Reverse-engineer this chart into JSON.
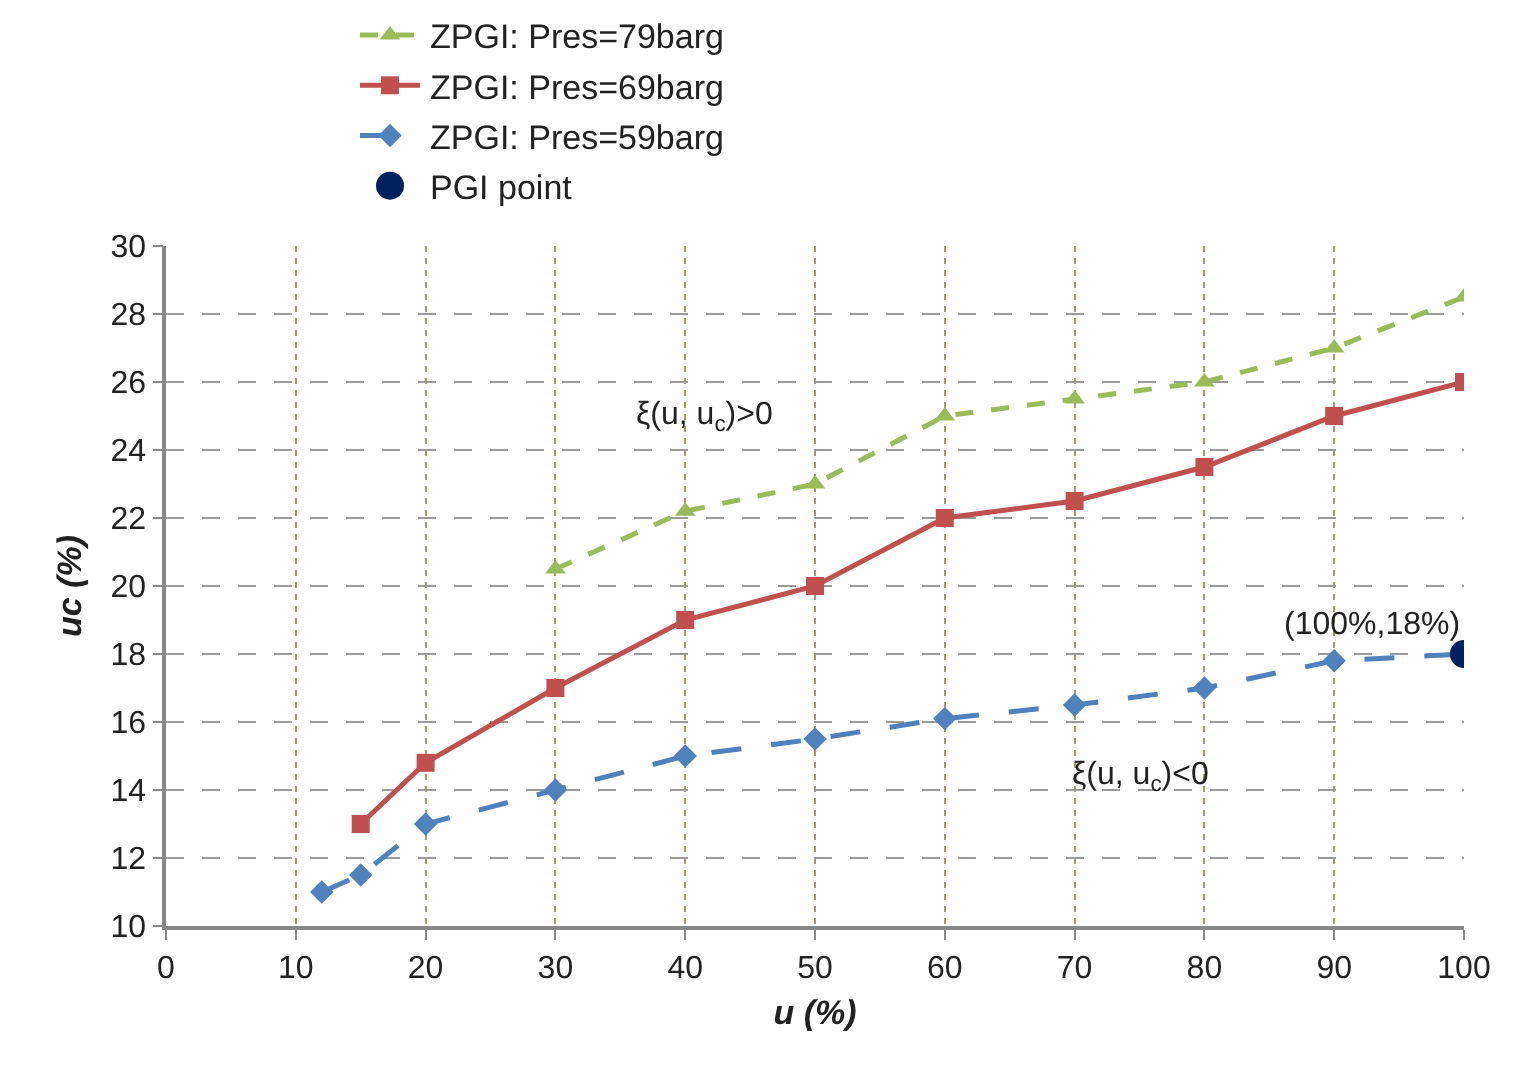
{
  "chart_data": {
    "type": "line",
    "xlabel": "u (%)",
    "ylabel": "uc (%)",
    "xlim": [
      0,
      100
    ],
    "xticks": [
      0,
      10,
      20,
      30,
      40,
      50,
      60,
      70,
      80,
      90,
      100
    ],
    "ylim": [
      10,
      30
    ],
    "yticks": [
      10,
      12,
      14,
      16,
      18,
      20,
      22,
      24,
      26,
      28,
      30
    ],
    "grid": true,
    "legend": "top",
    "series": [
      {
        "name": "ZPGI: Pres=79barg",
        "color": "#9bbb59",
        "marker": "triangle",
        "line_style": "dashed",
        "x": [
          30,
          40,
          50,
          60,
          70,
          80,
          90,
          100
        ],
        "values": [
          20.5,
          22.2,
          23,
          25,
          25.5,
          26,
          27,
          28.5
        ]
      },
      {
        "name": "ZPGI: Pres=69barg",
        "color": "#c0504d",
        "marker": "square",
        "line_style": "solid",
        "x": [
          15,
          20,
          30,
          40,
          50,
          60,
          70,
          80,
          90,
          100
        ],
        "values": [
          13,
          14.8,
          17,
          19,
          20,
          22,
          22.5,
          23.5,
          25,
          26
        ]
      },
      {
        "name": "ZPGI: Pres=59barg",
        "color": "#4f81bd",
        "marker": "diamond",
        "line_style": "dashed",
        "x": [
          12,
          15,
          20,
          30,
          40,
          50,
          60,
          70,
          80,
          90,
          100
        ],
        "values": [
          11,
          11.5,
          13,
          14,
          15,
          15.5,
          16.1,
          16.5,
          17,
          17.8,
          18
        ]
      },
      {
        "name": "PGI point",
        "type": "scatter",
        "color": "#002060",
        "marker": "circle",
        "x": [
          100
        ],
        "values": [
          18
        ]
      }
    ],
    "annotations": [
      "ξ(u, u$_{c}$)>0",
      "ξ(u, u$_{c}$)<0",
      {
        "text": "(100%,18%)",
        "x": 100,
        "y": 18
      }
    ]
  }
}
